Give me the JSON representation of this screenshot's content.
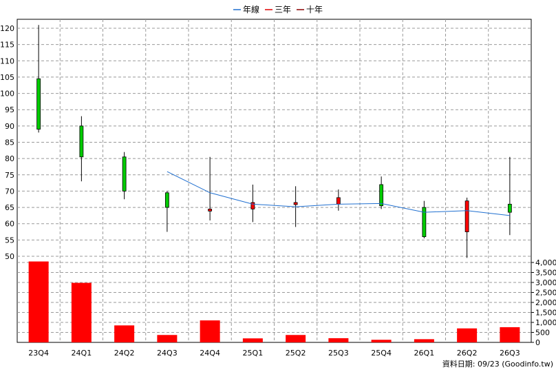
{
  "legend": [
    {
      "label": "年線",
      "color": "#1f6fd0"
    },
    {
      "label": "三年",
      "color": "#e00000"
    },
    {
      "label": "十年",
      "color": "#8b0000"
    }
  ],
  "source": "資料日期: 09/23 (Goodinfo.tw)",
  "colors": {
    "up": "#ff0000",
    "down": "#00cc00",
    "volume": "#ff0000",
    "ma": "#1f6fd0",
    "grid": "#999999"
  },
  "chart_data": [
    {
      "type": "candlestick",
      "categories": [
        "23Q4",
        "24Q1",
        "24Q2",
        "24Q3",
        "24Q4",
        "25Q1",
        "25Q2",
        "25Q3",
        "25Q4",
        "26Q1",
        "26Q2",
        "26Q3"
      ],
      "ohlc": [
        {
          "open": 104.5,
          "high": 121,
          "low": 88,
          "close": 89
        },
        {
          "open": 90,
          "high": 93,
          "low": 73,
          "close": 80.5
        },
        {
          "open": 80.5,
          "high": 82,
          "low": 67.5,
          "close": 70
        },
        {
          "open": 69.5,
          "high": 70,
          "low": 57.5,
          "close": 65
        },
        {
          "open": 64,
          "high": 80.5,
          "low": 61,
          "close": 64.5
        },
        {
          "open": 64.5,
          "high": 72,
          "low": 60.5,
          "close": 66.5
        },
        {
          "open": 66,
          "high": 71.5,
          "low": 59,
          "close": 66.5
        },
        {
          "open": 66,
          "high": 70.5,
          "low": 64,
          "close": 68
        },
        {
          "open": 72,
          "high": 74.5,
          "low": 64.5,
          "close": 65.5
        },
        {
          "open": 65,
          "high": 67,
          "low": 55.5,
          "close": 56
        },
        {
          "open": 57.5,
          "high": 68,
          "low": 49.5,
          "close": 67
        },
        {
          "open": 66,
          "high": 80.5,
          "low": 56.5,
          "close": 63.5
        }
      ],
      "ma_line": [
        null,
        null,
        null,
        76,
        69.5,
        66,
        65.2,
        66,
        66.2,
        63.5,
        64,
        62.5
      ],
      "ylim": [
        50,
        120
      ],
      "yticks": [
        50,
        55,
        60,
        65,
        70,
        75,
        80,
        85,
        90,
        95,
        100,
        105,
        110,
        115,
        120
      ]
    },
    {
      "type": "bar",
      "categories": [
        "23Q4",
        "24Q1",
        "24Q2",
        "24Q3",
        "24Q4",
        "25Q1",
        "25Q2",
        "25Q3",
        "25Q4",
        "26Q1",
        "26Q2",
        "26Q3"
      ],
      "values": [
        4050,
        2980,
        850,
        370,
        1100,
        200,
        370,
        210,
        130,
        160,
        700,
        760
      ],
      "ylim": [
        0,
        4000
      ],
      "yticks": [
        "0",
        "500",
        "1,000",
        "1,500",
        "2,000",
        "2,500",
        "3,000",
        "3,500",
        "4,000"
      ]
    }
  ]
}
